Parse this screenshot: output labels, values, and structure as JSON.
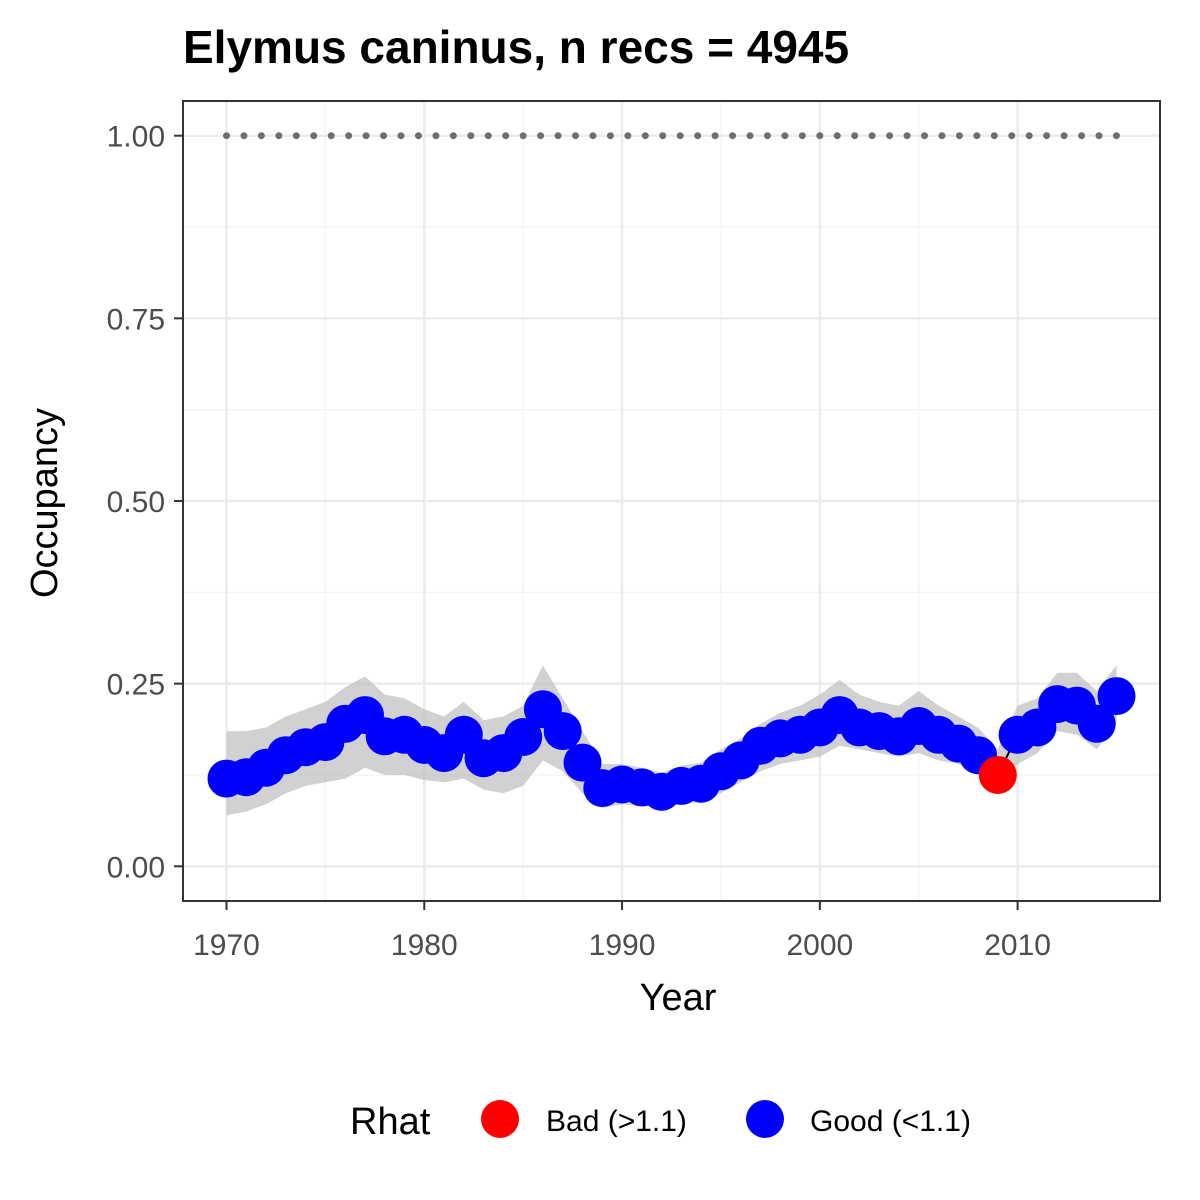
{
  "chart_data": {
    "type": "line",
    "title": "Elymus caninus, n recs = 4945",
    "xlabel": "Year",
    "ylabel": "Occupancy",
    "xlim": [
      1967.8,
      2017.2
    ],
    "ylim": [
      -0.0475,
      1.0475
    ],
    "x_ticks": [
      1970,
      1980,
      1990,
      2000,
      2010
    ],
    "x_tick_labels": [
      "1970",
      "1980",
      "1990",
      "2000",
      "2010"
    ],
    "y_ticks": [
      0,
      0.25,
      0.5,
      0.75,
      1.0
    ],
    "y_tick_labels": [
      "0.00",
      "0.25",
      "0.50",
      "0.75",
      "1.00"
    ],
    "grid": true,
    "legend_position": "bottom",
    "legend": {
      "title": "Rhat",
      "items": [
        {
          "label": "Bad (>1.1)",
          "color": "#ff0000"
        },
        {
          "label": "Good (<1.1)",
          "color": "#0000ff"
        }
      ]
    },
    "colors": {
      "bad": "#ff0000",
      "good": "#0000ff",
      "ribbon": "#bebebe",
      "reference": "#6e6e6e"
    },
    "reference_line": {
      "x_start": 1970,
      "x_end": 2015,
      "y": 1.0,
      "style": "dotted"
    },
    "x": [
      1970,
      1971,
      1972,
      1973,
      1974,
      1975,
      1976,
      1977,
      1978,
      1979,
      1980,
      1981,
      1982,
      1983,
      1984,
      1985,
      1986,
      1987,
      1988,
      1989,
      1990,
      1991,
      1992,
      1993,
      1994,
      1995,
      1996,
      1997,
      1998,
      1999,
      2000,
      2001,
      2002,
      2003,
      2004,
      2005,
      2006,
      2007,
      2008,
      2009,
      2010,
      2011,
      2012,
      2013,
      2014,
      2015
    ],
    "y": [
      0.12,
      0.122,
      0.135,
      0.152,
      0.163,
      0.17,
      0.195,
      0.207,
      0.178,
      0.18,
      0.166,
      0.155,
      0.18,
      0.148,
      0.155,
      0.177,
      0.215,
      0.185,
      0.142,
      0.107,
      0.112,
      0.108,
      0.102,
      0.11,
      0.113,
      0.13,
      0.145,
      0.165,
      0.175,
      0.18,
      0.19,
      0.207,
      0.19,
      0.185,
      0.178,
      0.192,
      0.18,
      0.168,
      0.152,
      0.125,
      0.18,
      0.19,
      0.222,
      0.22,
      0.195,
      0.233
    ],
    "lower": [
      0.07,
      0.075,
      0.085,
      0.1,
      0.11,
      0.115,
      0.12,
      0.135,
      0.125,
      0.125,
      0.118,
      0.115,
      0.12,
      0.105,
      0.1,
      0.11,
      0.145,
      0.13,
      0.1,
      0.08,
      0.085,
      0.082,
      0.08,
      0.085,
      0.088,
      0.1,
      0.115,
      0.13,
      0.14,
      0.145,
      0.15,
      0.165,
      0.16,
      0.155,
      0.15,
      0.155,
      0.145,
      0.14,
      0.13,
      0.105,
      0.14,
      0.155,
      0.185,
      0.18,
      0.16,
      0.195
    ],
    "upper": [
      0.185,
      0.185,
      0.19,
      0.205,
      0.215,
      0.225,
      0.245,
      0.26,
      0.235,
      0.23,
      0.215,
      0.205,
      0.225,
      0.2,
      0.205,
      0.22,
      0.275,
      0.23,
      0.185,
      0.14,
      0.14,
      0.135,
      0.128,
      0.138,
      0.142,
      0.16,
      0.175,
      0.195,
      0.21,
      0.22,
      0.235,
      0.255,
      0.235,
      0.225,
      0.22,
      0.24,
      0.22,
      0.205,
      0.19,
      0.16,
      0.22,
      0.23,
      0.265,
      0.265,
      0.24,
      0.275
    ],
    "rhat": [
      "Good",
      "Good",
      "Good",
      "Good",
      "Good",
      "Good",
      "Good",
      "Good",
      "Good",
      "Good",
      "Good",
      "Good",
      "Good",
      "Good",
      "Good",
      "Good",
      "Good",
      "Good",
      "Good",
      "Good",
      "Good",
      "Good",
      "Good",
      "Good",
      "Good",
      "Good",
      "Good",
      "Good",
      "Good",
      "Good",
      "Good",
      "Good",
      "Good",
      "Good",
      "Good",
      "Good",
      "Good",
      "Good",
      "Good",
      "Bad",
      "Good",
      "Good",
      "Good",
      "Good",
      "Good",
      "Good"
    ]
  }
}
